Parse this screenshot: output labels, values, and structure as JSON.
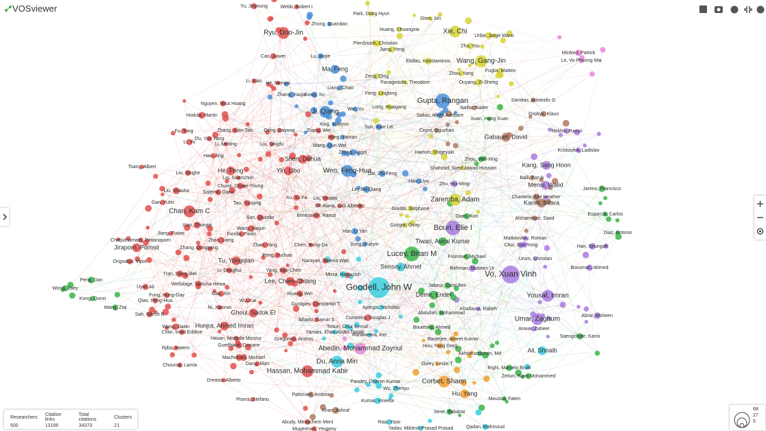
{
  "app": {
    "title": "VOSviewer"
  },
  "stats": {
    "headers": [
      "Researchers",
      "Citation links",
      "Total citations",
      "Clusters"
    ],
    "values": [
      500,
      13166,
      34373,
      21
    ]
  },
  "scale_legend": [
    68,
    27,
    5
  ],
  "nodes": [
    "Yu, Jinyoung",
    "Webb, Robert I",
    "Ryu, Doo-Jin",
    "Cao, Jiawei",
    "Li, Xiao",
    "He, Mengxi",
    "Nguyen, Nhut Hoang",
    "Hodula, Martin",
    "Zhang, Xiao-Tao",
    "Dong, Dayong",
    "Zhang, Wei",
    "Fu, Tong",
    "Du, Yun Yang",
    "Li, Yu",
    "Li, Meiting",
    "Liu, Qingfu",
    "Hao, Jing",
    "Shen, Dehua",
    "Tsang, Albert",
    "He, Feng",
    "Liu, Xinghe",
    "Yin, Libo",
    "Liu, Guanchun",
    "Chung, Chune Young",
    "Liu, Shasha",
    "Salerno, Dario",
    "Gan, Yufei",
    "Tao, Yunqing",
    "Xu, Yu Fa",
    "Liu, Youwei",
    "Gil-Alana, Luis Alberiko",
    "Chan, Kam C",
    "Sun, Quanlin",
    "Benkraiem, Ramzi",
    "Xiao, Zhongyi",
    "Wang, Haijun",
    "Jiang, Fuwei",
    "Fiorillo, Paolo",
    "Zhao, Liang",
    "Chatjuthamard, Pattanaporn",
    "Jiraporn, Pornsit",
    "Zhang, Dongyang",
    "Zhao, Yang",
    "Chen, Rong-Da",
    "Peng, Yuchao",
    "Tu, Yongqian",
    "Ongsakul, Viput",
    "Narayan, Seema Wati",
    "Li, Donghui",
    "Yang, Bao-Chen",
    "Tran, Dang Viet",
    "Lee, Chien-Chiang",
    "Wellalage, Nirosha Hewa",
    "Uyar, Ali",
    "Fung, Hung-Gay",
    "Qiao, Peng-Hua",
    "Gao, Xin",
    "Huang, Wei",
    "Wu, Kai",
    "Ni, Xiaoran",
    "Sah, Nilesh B",
    "Ghoul, Sadok El",
    "Wang, Jiaxin",
    "Hunjra, Ahmed Imran",
    "Chkir, Imed Eddine",
    "Hasan, Mostafa Monzur",
    "Guedhami, Omrane",
    "Rjiba, Hatem",
    "Machokoto, Michael",
    "Dang, Man",
    "Chouroa, Lamia",
    "Dreassi, Alberto",
    "Pisera, Stefano",
    "Gregoriou, Andros",
    "Gurdgiev, Constantin T",
    "Alharbi, Samar S",
    "Hassan, Mohammad Kabir",
    "Paltrinieri, Andrea",
    "Khan, Ashraf",
    "Abudy, Menachem Meni",
    "Mugerman, Yevgeny",
    "Zhong, Guandan",
    "Lu, Xinjie",
    "Ma, Feng",
    "Liang, Chao",
    "Zhang, Yaojie",
    "Gong, Xu",
    "Ji, Qiang",
    "Wei, Yu",
    "Xing, Xiaoyun",
    "Sun, Xiao Lei",
    "Hong, Yanran",
    "Wang, Qun Wei",
    "Zhong, Angel",
    "Wen, Feng-Hua",
    "Lin, Bo-Qiang",
    "Dai, Zhi-Feng",
    "Han, Li Yan",
    "Gupta, Rangan",
    "Salisu, Afees Adebare",
    "Park, Dong Hyun",
    "Shen, Xin",
    "Huang, Chuangxia",
    "Pierdzioch, Christian",
    "Jiang, Yong",
    "Xie, Chi",
    "Zhu, You",
    "Uribe, Jorge Mario",
    "Wang, Gang-Jin",
    "Ekillas, Konstantinos",
    "Foglia, Matteo",
    "Zhou, Yang",
    "Zeng, Qing",
    "Panagiotidis, Theodore",
    "Ouyang, Zi-Sheng",
    "Feng, Lingbing",
    "Long, Huaigang",
    "Naifar, Nader",
    "Minford, Patrick",
    "Le, Vo Phuong Mai",
    "Samitas, Aristeidis G",
    "Grobys, Klaus",
    "Xuan, Hung Xuan",
    "Cepni, Oguzhan",
    "Gabauer, David",
    "Nekhili, Ramzi",
    "Kristoufek, Ladislav",
    "Hamori, Shigeyuki",
    "Zhou, Wei-Xing",
    "Kang, Sang Hoon",
    "Shahzad, Syed Jawad Hussain",
    "Hau, Liya",
    "Zhu, Hui-Ming",
    "Balli, Faruk",
    "Mensi, Walid",
    "Jareno, Francisco",
    "Charteris, Alie Heather",
    "Karim, Sitara",
    "Goutte, Stephane",
    "Zaremba, Adam",
    "Alshammari, Saad",
    "Esparcia, Carlos",
    "Duan, Kun",
    "Gozgor, Giray",
    "Bouri, Elie I",
    "Diaz, Antonio",
    "Matkovskyy, Roman",
    "Tiwari, Aviral Kumar",
    "Choi, Sun-Yong",
    "Han, Seungoh",
    "Song, Xueyin",
    "Lucey, Brian M",
    "Frommel, Michael",
    "Urom, Christian",
    "Sensoy, Ahmet",
    "Rehman, Mobeen Ur",
    "Bossman, Ahmed",
    "Vo, Xuan Vinh",
    "Mirza, Nawazish",
    "Goodell, John W",
    "Jabeur, Sami Ben",
    "Demir, Ender",
    "Yousaf, Imran",
    "Apergis, Nicholas",
    "Khalfaoui, Rabeh",
    "Abdullah, Mohammad",
    "Abrar, Afsheen",
    "Cumming, Douglas J",
    "Umar, Zaghum",
    "Tosun, Onur Kemal",
    "Bouteska, Ahmed",
    "Anwar, Zaheer",
    "Yamani, Ehab Abdel-Tawab",
    "Ranaweera, Kei",
    "Saengchote, Kanis",
    "Banerjee, Ameet Kumar",
    "Hou, Yang Greg",
    "Abedin, Mohammad Zoynul",
    "Ali, Shoaib",
    "Akhtaruzzaman, Md",
    "Du, Anna Min",
    "Oxley, Leslie T",
    "Righi, Marcelo Brutti",
    "Corbet, Shaen",
    "Zeitun, Rami Mohammed",
    "Pandey, Dharen Kumar",
    "Wu, Zhenyu",
    "Hu, Yang",
    "Kumar, Vineeta",
    "Moussa, Faten",
    "Sene, Babacar",
    "Riaz, Yasir",
    "Yadav, Miklesh Prasad Prasad",
    "Qadan, Mahmoud",
    "Peng, Dan",
    "Wong, Zoey",
    "Kong, Qunxi",
    "Wang, Ziqi"
  ]
}
